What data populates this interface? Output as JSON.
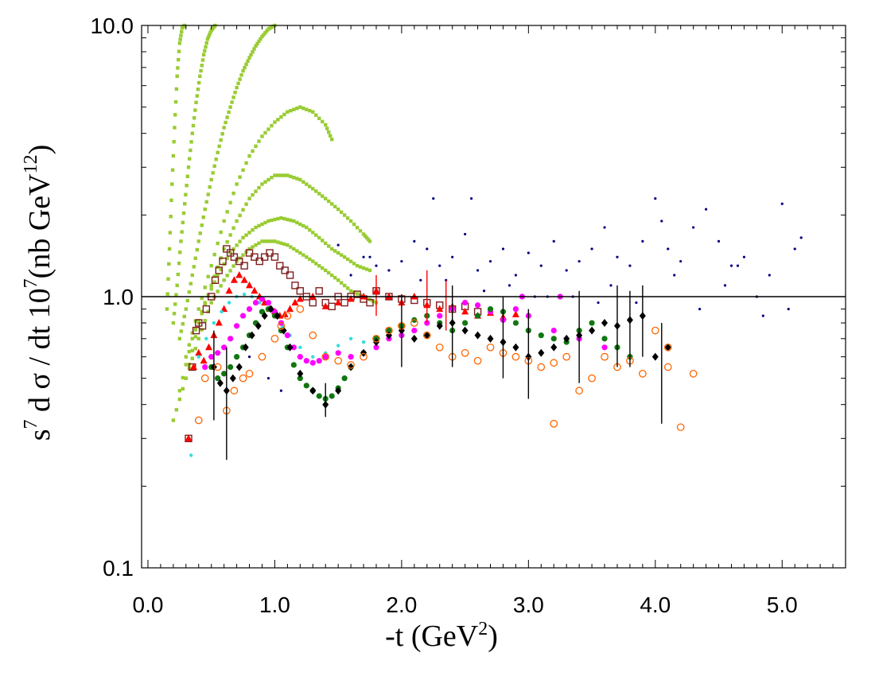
{
  "chart_data": {
    "type": "scatter",
    "title": "",
    "xlabel": "-t (GeV",
    "xlabel_sup": "2",
    "xlabel_tail": ")",
    "ylabel_s": "s",
    "ylabel_s_sup": "7",
    "ylabel_mid": " d σ / dt 10",
    "ylabel_mid_sup": "7",
    "ylabel_unit": "(nb GeV",
    "ylabel_unit_sup": "12",
    "ylabel_tail": ")",
    "xlim": [
      -0.05,
      5.5
    ],
    "ylim": [
      0.1,
      10.0
    ],
    "yscale": "log",
    "x_ticks": [
      0.0,
      1.0,
      2.0,
      3.0,
      4.0,
      5.0
    ],
    "x_tick_labels": [
      "0.0",
      "1.0",
      "2.0",
      "3.0",
      "4.0",
      "5.0"
    ],
    "y_ticks": [
      0.1,
      1.0,
      10.0
    ],
    "y_tick_labels": [
      "0.1",
      "1.0",
      "10.0"
    ],
    "reference_line": 1.0,
    "colors": {
      "frame": "#000000",
      "reference_line": "#000000",
      "background": "#ffffff"
    },
    "series": [
      {
        "name": "green-squares",
        "marker": "square",
        "color": "#99cc33",
        "curves": [
          {
            "x": [
              0.15,
              0.17,
              0.19,
              0.21,
              0.23,
              0.25,
              0.27,
              0.29
            ],
            "y": [
              0.9,
              1.5,
              2.6,
              4.2,
              6.5,
              8.6,
              9.8,
              10.0
            ]
          },
          {
            "x": [
              0.2,
              0.23,
              0.26,
              0.29,
              0.32,
              0.35,
              0.38,
              0.41,
              0.44,
              0.47,
              0.5,
              0.53
            ],
            "y": [
              0.8,
              1.1,
              1.6,
              2.2,
              3.0,
              4.0,
              5.2,
              6.5,
              7.8,
              8.9,
              9.6,
              10.0
            ]
          },
          {
            "x": [
              0.25,
              0.3,
              0.35,
              0.4,
              0.45,
              0.5,
              0.55,
              0.6,
              0.65,
              0.7,
              0.75,
              0.8,
              0.85,
              0.9,
              0.95,
              1.0
            ],
            "y": [
              0.7,
              0.9,
              1.2,
              1.6,
              2.1,
              2.7,
              3.4,
              4.2,
              5.0,
              5.9,
              6.8,
              7.6,
              8.4,
              9.1,
              9.7,
              10.0
            ]
          },
          {
            "x": [
              0.3,
              0.4,
              0.5,
              0.6,
              0.7,
              0.8,
              0.9,
              1.0,
              1.1,
              1.2,
              1.3,
              1.4,
              1.45
            ],
            "y": [
              0.6,
              0.9,
              1.3,
              1.9,
              2.6,
              3.3,
              3.9,
              4.4,
              4.8,
              5.0,
              4.8,
              4.3,
              3.8
            ]
          },
          {
            "x": [
              0.3,
              0.4,
              0.5,
              0.6,
              0.7,
              0.8,
              0.9,
              1.0,
              1.1,
              1.2,
              1.3,
              1.4,
              1.5,
              1.6,
              1.7,
              1.75
            ],
            "y": [
              0.5,
              0.8,
              1.1,
              1.5,
              1.9,
              2.3,
              2.6,
              2.8,
              2.8,
              2.7,
              2.5,
              2.3,
              2.1,
              1.9,
              1.7,
              1.6
            ]
          },
          {
            "x": [
              0.25,
              0.35,
              0.45,
              0.55,
              0.65,
              0.75,
              0.85,
              0.95,
              1.05,
              1.15,
              1.25,
              1.35,
              1.45,
              1.55,
              1.65,
              1.75
            ],
            "y": [
              0.45,
              0.7,
              0.95,
              1.2,
              1.45,
              1.65,
              1.8,
              1.9,
              1.95,
              1.9,
              1.8,
              1.65,
              1.5,
              1.4,
              1.3,
              1.25
            ]
          },
          {
            "x": [
              0.2,
              0.3,
              0.4,
              0.5,
              0.6,
              0.7,
              0.8,
              0.9,
              1.0,
              1.1,
              1.2,
              1.3,
              1.4,
              1.5,
              1.6,
              1.7,
              1.8
            ],
            "y": [
              0.35,
              0.5,
              0.7,
              0.95,
              1.15,
              1.35,
              1.5,
              1.6,
              1.6,
              1.55,
              1.45,
              1.35,
              1.25,
              1.15,
              1.05,
              1.0,
              0.95
            ]
          }
        ]
      },
      {
        "name": "navy-dots",
        "marker": "dot",
        "color": "#000080",
        "x": [
          1.5,
          1.6,
          1.7,
          1.8,
          1.9,
          2.0,
          2.1,
          2.2,
          2.3,
          2.4,
          2.5,
          2.6,
          2.7,
          2.8,
          2.9,
          3.0,
          3.1,
          3.2,
          3.3,
          3.4,
          3.5,
          3.6,
          3.7,
          3.8,
          3.9,
          4.0,
          4.1,
          4.2,
          4.3,
          4.4,
          4.5,
          4.6,
          4.7,
          4.8,
          4.9,
          5.0,
          5.1,
          5.15,
          2.25,
          2.55,
          3.05,
          3.55,
          4.05,
          4.55,
          1.75,
          2.15,
          2.65,
          3.15,
          3.65,
          4.15,
          4.65,
          5.05,
          0.8,
          0.95,
          1.05,
          2.35,
          2.85,
          3.35,
          3.85,
          4.35,
          4.85
        ],
        "y": [
          1.55,
          1.2,
          1.4,
          1.3,
          1.25,
          1.35,
          1.6,
          1.5,
          1.3,
          1.4,
          1.7,
          1.25,
          1.35,
          1.5,
          1.2,
          1.45,
          1.3,
          1.6,
          1.25,
          1.35,
          1.5,
          1.8,
          1.4,
          1.3,
          1.6,
          2.3,
          1.5,
          1.35,
          1.8,
          2.1,
          1.6,
          1.3,
          1.4,
          1.0,
          1.2,
          2.2,
          1.5,
          1.65,
          2.3,
          2.3,
          1.0,
          0.95,
          1.9,
          1.1,
          1.4,
          1.15,
          1.05,
          1.0,
          1.1,
          1.2,
          1.3,
          0.9,
          0.6,
          0.5,
          0.45,
          1.15,
          1.1,
          1.0,
          0.95,
          0.9,
          0.85
        ]
      },
      {
        "name": "brown-open-squares",
        "marker": "open-square",
        "color": "#7f1f1f",
        "x": [
          0.32,
          0.35,
          0.38,
          0.4,
          0.43,
          0.46,
          0.5,
          0.53,
          0.56,
          0.59,
          0.62,
          0.65,
          0.68,
          0.72,
          0.76,
          0.8,
          0.84,
          0.88,
          0.92,
          0.96,
          1.0,
          1.04,
          1.08,
          1.12,
          1.16,
          1.2,
          1.25,
          1.3,
          1.35,
          1.4,
          1.45,
          1.5,
          1.55,
          1.6,
          1.65,
          1.7,
          1.75,
          1.8,
          1.9,
          2.0,
          2.1,
          2.2,
          2.3,
          2.4,
          2.5,
          2.6
        ],
        "y": [
          0.3,
          0.55,
          0.75,
          0.8,
          0.78,
          0.9,
          1.0,
          1.15,
          1.25,
          1.35,
          1.5,
          1.45,
          1.4,
          1.35,
          1.3,
          1.45,
          1.4,
          1.35,
          1.4,
          1.45,
          1.4,
          1.3,
          1.25,
          1.2,
          1.1,
          1.05,
          1.0,
          0.95,
          1.05,
          0.95,
          0.92,
          1.0,
          0.95,
          1.0,
          1.02,
          0.98,
          0.95,
          1.05,
          1.0,
          0.98,
          0.97,
          0.95,
          0.93,
          0.9,
          0.92,
          0.88
        ]
      },
      {
        "name": "red-triangles",
        "marker": "triangle",
        "color": "#ff0000",
        "x": [
          0.32,
          0.36,
          0.4,
          0.44,
          0.48,
          0.52,
          0.56,
          0.6,
          0.64,
          0.68,
          0.72,
          0.76,
          0.8,
          0.84,
          0.88,
          0.92,
          0.96,
          1.0,
          1.04,
          1.08,
          1.12,
          1.16,
          1.2,
          1.3,
          1.4,
          1.5,
          1.6,
          1.7,
          1.8,
          1.9,
          2.0,
          2.1,
          2.2,
          2.3,
          2.4,
          2.5,
          2.6,
          2.7,
          2.8,
          2.9
        ],
        "y": [
          0.3,
          0.55,
          0.62,
          0.58,
          0.65,
          0.72,
          0.8,
          0.9,
          1.05,
          1.15,
          1.2,
          1.15,
          1.1,
          1.05,
          1.0,
          0.95,
          0.9,
          0.88,
          0.85,
          0.86,
          0.9,
          0.95,
          0.98,
          1.0,
          0.92,
          0.95,
          0.98,
          1.0,
          1.05,
          1.0,
          0.95,
          1.0,
          0.93,
          0.9,
          0.92,
          0.88,
          0.85,
          0.87,
          0.84,
          0.86
        ]
      },
      {
        "name": "cyan-dots",
        "marker": "small-dot",
        "color": "#33dddd",
        "x": [
          0.34,
          0.4,
          0.46,
          0.52,
          0.58,
          0.64,
          0.7,
          0.76,
          0.82,
          0.88,
          0.94,
          1.0,
          1.06,
          1.12,
          1.2,
          1.3,
          1.4,
          1.5,
          1.6,
          1.7
        ],
        "y": [
          0.26,
          0.6,
          0.7,
          0.8,
          0.88,
          0.95,
          1.0,
          1.02,
          1.0,
          0.95,
          0.9,
          0.85,
          0.78,
          0.72,
          0.65,
          0.6,
          0.62,
          0.66,
          0.7,
          0.68
        ]
      },
      {
        "name": "magenta-dots",
        "marker": "dot",
        "color": "#ff00ff",
        "x": [
          0.45,
          0.5,
          0.55,
          0.6,
          0.65,
          0.7,
          0.75,
          0.8,
          0.85,
          0.9,
          0.95,
          1.0,
          1.05,
          1.1,
          1.15,
          1.2,
          1.25,
          1.3,
          1.35,
          1.4,
          1.5,
          1.6,
          1.7,
          1.8,
          1.9,
          2.0,
          2.1,
          2.2,
          2.3,
          2.4,
          2.5,
          2.6,
          2.7,
          2.8,
          2.9,
          3.0,
          3.2,
          3.4,
          3.6,
          2.95,
          3.25
        ],
        "y": [
          0.55,
          0.6,
          0.62,
          0.65,
          0.7,
          0.78,
          0.85,
          0.9,
          0.95,
          0.98,
          0.95,
          0.88,
          0.8,
          0.72,
          0.65,
          0.6,
          0.58,
          0.57,
          0.58,
          0.6,
          0.62,
          0.6,
          0.62,
          0.65,
          0.7,
          0.72,
          0.75,
          0.8,
          0.85,
          0.9,
          0.95,
          0.93,
          0.88,
          0.82,
          0.9,
          0.85,
          0.75,
          0.7,
          0.65,
          1.0,
          1.0
        ]
      },
      {
        "name": "green-dots",
        "marker": "dot",
        "color": "#117711",
        "x": [
          0.5,
          0.55,
          0.6,
          0.65,
          0.7,
          0.75,
          0.8,
          0.85,
          0.9,
          0.95,
          1.0,
          1.05,
          1.1,
          1.15,
          1.2,
          1.25,
          1.3,
          1.35,
          1.4,
          1.45,
          1.5,
          1.55,
          1.6,
          1.7,
          1.8,
          1.9,
          2.0,
          2.1,
          2.2,
          2.3,
          2.4,
          2.5,
          2.6,
          2.7,
          2.8,
          2.9,
          3.0,
          3.1,
          3.2,
          3.3,
          3.4,
          3.5,
          3.6,
          3.7,
          3.8
        ],
        "y": [
          0.55,
          0.5,
          0.52,
          0.55,
          0.6,
          0.65,
          0.72,
          0.8,
          0.88,
          0.9,
          0.85,
          0.75,
          0.65,
          0.56,
          0.5,
          0.47,
          0.45,
          0.43,
          0.42,
          0.43,
          0.46,
          0.5,
          0.55,
          0.62,
          0.7,
          0.75,
          0.78,
          0.82,
          0.85,
          0.8,
          0.75,
          0.8,
          0.85,
          0.9,
          0.88,
          0.8,
          0.75,
          0.72,
          0.7,
          0.68,
          0.75,
          0.8,
          0.7,
          0.65,
          0.6
        ]
      },
      {
        "name": "black-diamonds",
        "marker": "diamond",
        "color": "#000000",
        "x": [
          0.52,
          0.57,
          0.62,
          0.67,
          0.72,
          0.77,
          0.82,
          0.87,
          0.92,
          0.97,
          1.02,
          1.07,
          1.12,
          1.2,
          1.3,
          1.4,
          1.5,
          1.6,
          1.7,
          1.8,
          1.9,
          2.0,
          2.1,
          2.2,
          2.3,
          2.4,
          2.5,
          2.6,
          2.7,
          2.8,
          2.9,
          3.0,
          3.1,
          3.2,
          3.3,
          3.4,
          3.5,
          3.6,
          3.7,
          3.8,
          3.9,
          4.0,
          4.1
        ],
        "y": [
          0.55,
          0.48,
          0.45,
          0.5,
          0.55,
          0.65,
          0.72,
          0.78,
          0.85,
          0.9,
          0.85,
          0.75,
          0.65,
          0.52,
          0.45,
          0.4,
          0.45,
          0.55,
          0.62,
          0.68,
          0.72,
          0.75,
          0.7,
          0.72,
          0.78,
          0.8,
          0.75,
          0.72,
          0.7,
          0.68,
          0.65,
          0.6,
          0.62,
          0.65,
          0.7,
          0.72,
          0.75,
          0.8,
          0.78,
          0.82,
          0.85,
          0.6,
          0.65
        ]
      },
      {
        "name": "orange-open-circles",
        "marker": "open-circle",
        "color": "#ff6600",
        "x": [
          0.4,
          0.45,
          0.55,
          0.62,
          0.68,
          0.75,
          0.8,
          0.9,
          1.0,
          1.05,
          1.1,
          1.2,
          1.3,
          1.4,
          1.5,
          1.6,
          1.7,
          1.8,
          1.9,
          2.0,
          2.1,
          2.2,
          2.3,
          2.4,
          2.5,
          2.6,
          2.7,
          2.8,
          2.9,
          3.0,
          3.1,
          3.2,
          3.3,
          3.4,
          3.5,
          3.6,
          3.7,
          3.8,
          3.9,
          4.0,
          4.1,
          4.2,
          4.3,
          4.1,
          3.2
        ],
        "y": [
          0.35,
          0.5,
          0.55,
          0.38,
          0.45,
          0.5,
          0.52,
          0.6,
          0.7,
          0.78,
          0.85,
          0.9,
          0.72,
          0.6,
          0.58,
          0.56,
          0.6,
          0.7,
          0.75,
          0.78,
          0.8,
          0.72,
          0.65,
          0.6,
          0.62,
          0.58,
          0.65,
          0.62,
          0.6,
          0.58,
          0.55,
          0.57,
          0.6,
          0.45,
          0.5,
          0.6,
          0.55,
          0.58,
          0.52,
          0.75,
          0.65,
          0.33,
          0.52,
          0.55,
          0.34
        ]
      }
    ],
    "error_bars": {
      "color_black": "#000000",
      "color_red": "#ff0000",
      "points": [
        {
          "x": 0.52,
          "ylo": 0.35,
          "yhi": 0.75
        },
        {
          "x": 0.62,
          "ylo": 0.25,
          "yhi": 0.65
        },
        {
          "x": 1.4,
          "ylo": 0.36,
          "yhi": 0.48
        },
        {
          "x": 2.0,
          "ylo": 0.55,
          "yhi": 1.02
        },
        {
          "x": 2.4,
          "ylo": 0.55,
          "yhi": 1.1
        },
        {
          "x": 2.8,
          "ylo": 0.5,
          "yhi": 1.0
        },
        {
          "x": 3.0,
          "ylo": 0.42,
          "yhi": 0.9
        },
        {
          "x": 3.4,
          "ylo": 0.48,
          "yhi": 1.05
        },
        {
          "x": 3.7,
          "ylo": 0.55,
          "yhi": 1.1
        },
        {
          "x": 3.8,
          "ylo": 0.55,
          "yhi": 1.05
        },
        {
          "x": 3.9,
          "ylo": 0.6,
          "yhi": 1.1
        },
        {
          "x": 4.05,
          "ylo": 0.34,
          "yhi": 0.8
        },
        {
          "x": 2.2,
          "ylo": 0.8,
          "yhi": 1.25,
          "red": true
        },
        {
          "x": 2.35,
          "ylo": 0.75,
          "yhi": 1.15,
          "red": true
        },
        {
          "x": 1.8,
          "ylo": 0.85,
          "yhi": 1.2,
          "red": true
        }
      ]
    }
  }
}
